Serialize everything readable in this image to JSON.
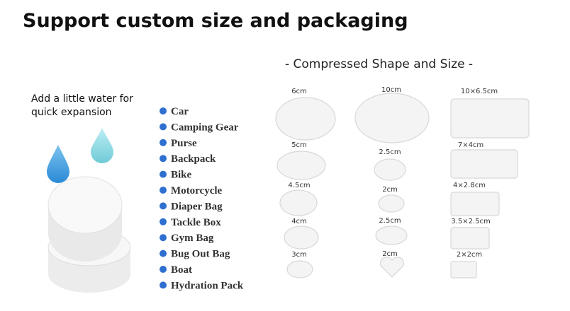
{
  "header": {
    "title": "Support custom size and packaging"
  },
  "note": {
    "lines": [
      "Add a little water for",
      "quick expansion"
    ]
  },
  "uses": [
    "Car",
    "Camping Gear",
    "Purse",
    "Backpack",
    "Bike",
    "Motorcycle",
    "Diaper Bag",
    "Tackle Box",
    "Gym Bag",
    "Bug Out Bag",
    "Boat",
    "Hydration Pack"
  ],
  "shapes": {
    "title": "- Compressed Shape and Size -",
    "columns": [
      [
        "6cm",
        "5cm",
        "4.5cm",
        "4cm",
        "3cm"
      ],
      [
        "10cm",
        "2.5cm",
        "2cm",
        "2.5cm",
        "2cm"
      ],
      [
        "10×6.5cm",
        "7×4cm",
        "4×2.8cm",
        "3.5×2.5cm",
        "2×2cm"
      ]
    ]
  }
}
